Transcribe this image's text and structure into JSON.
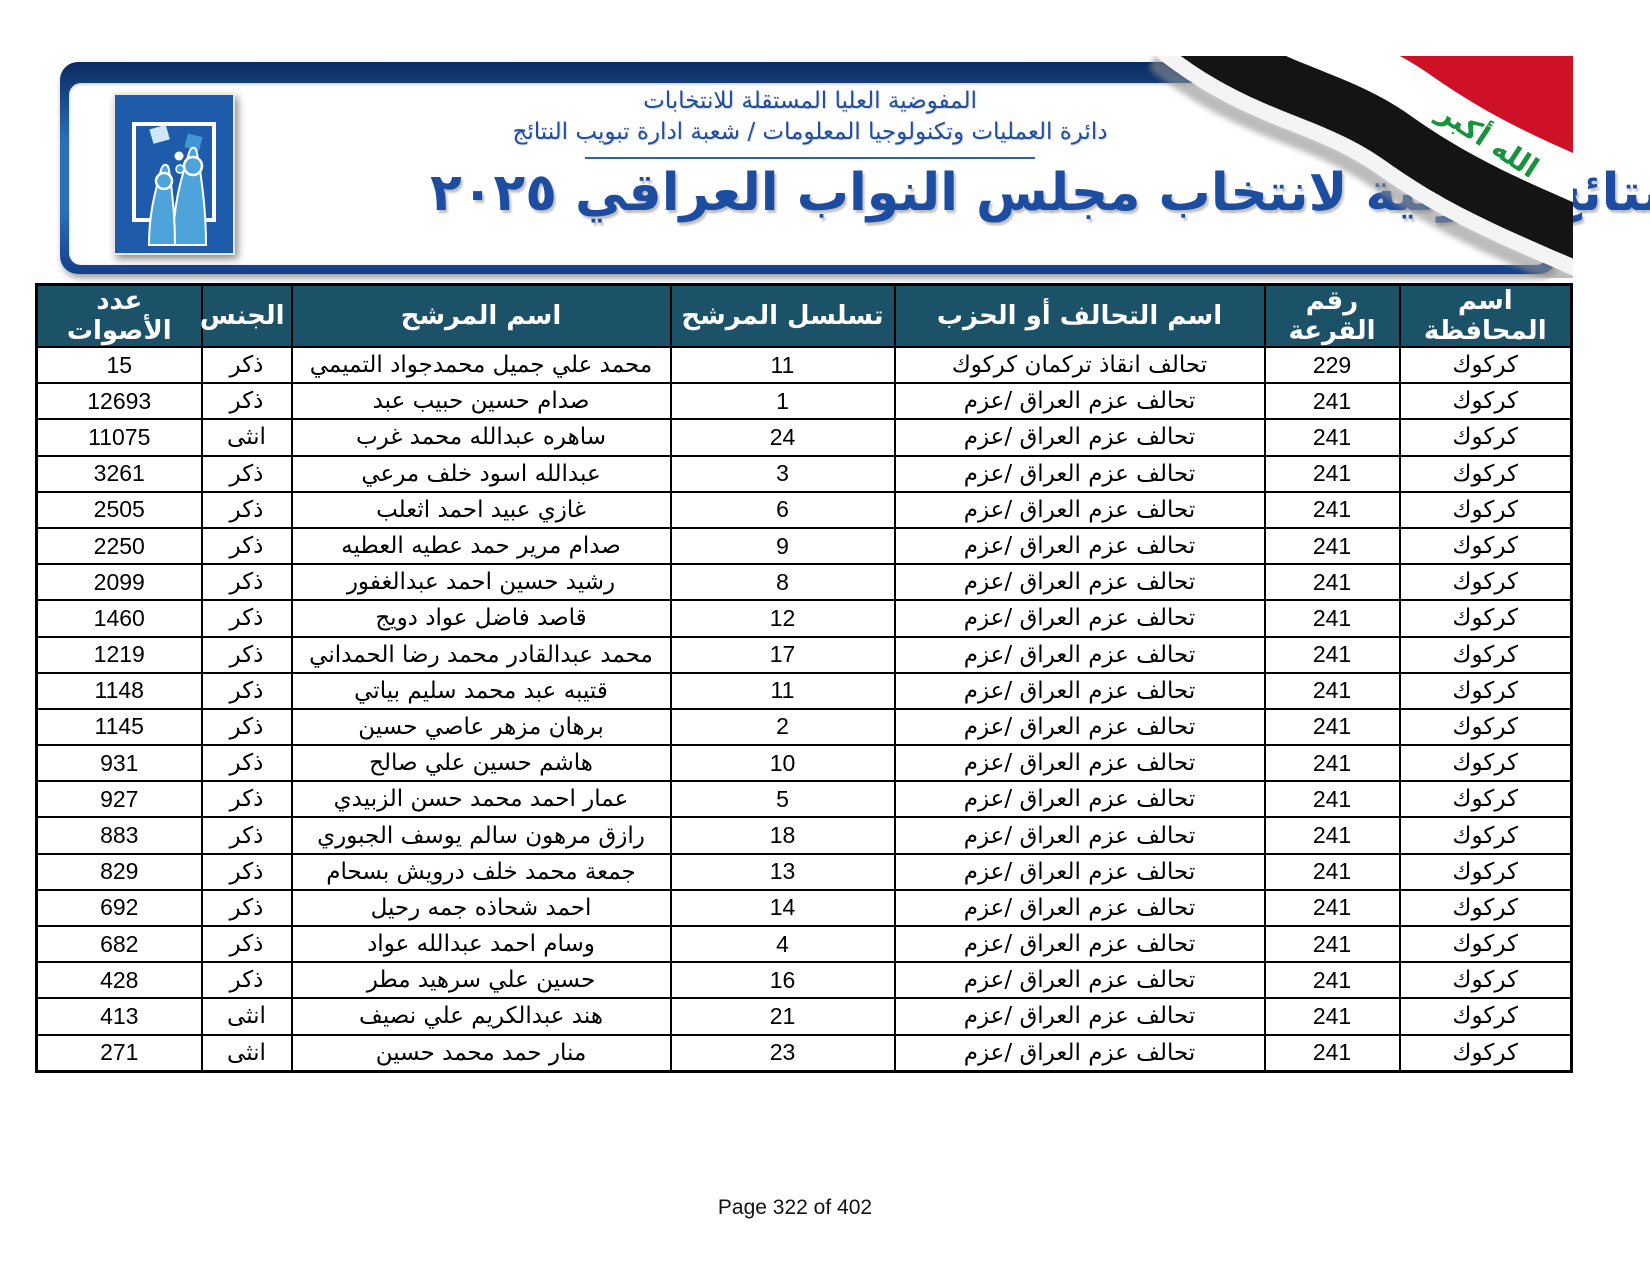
{
  "banner": {
    "org_line1": "المفوضية العليا المستقلة للانتخابات",
    "org_line2": "دائرة العمليات وتكنولوجيا المعلومات / شعبة ادارة تبويب النتائج",
    "title": "النتائج الاولية لانتخاب مجلس النواب العراقي ٢٠٢٥",
    "flag_takbir": "الله أكبر",
    "colors": {
      "frame_blue": "#2e6fb8",
      "title_blue": "#1c4da1",
      "flag_red": "#ce1126",
      "flag_black": "#111111",
      "takbir_green": "#17923d",
      "logo_blue": "#1e5cab",
      "logo_light_blue": "#4da3da"
    }
  },
  "table": {
    "header_color": "#1c5268",
    "headers": [
      "اسم المحافظة",
      "رقم القرعة",
      "اسم التحالف أو الحزب",
      "تسلسل المرشح",
      "اسم المرشح",
      "الجنس",
      "عدد الأصوات"
    ],
    "column_keys": [
      "governorate",
      "lottery",
      "party",
      "sequence",
      "name",
      "gender",
      "votes"
    ],
    "numeric_keys": [
      "lottery",
      "sequence",
      "votes"
    ],
    "rows": [
      {
        "votes": "15",
        "gender": "ذكر",
        "name": "محمد علي جميل محمدجواد التميمي",
        "sequence": "11",
        "party": "تحالف انقاذ تركمان كركوك",
        "lottery": "229",
        "governorate": "كركوك"
      },
      {
        "votes": "12693",
        "gender": "ذكر",
        "name": "صدام حسين حبيب عبد",
        "sequence": "1",
        "party": "تحالف عزم العراق /عزم",
        "lottery": "241",
        "governorate": "كركوك"
      },
      {
        "votes": "11075",
        "gender": "انثى",
        "name": "ساهره عبدالله محمد غرب",
        "sequence": "24",
        "party": "تحالف عزم العراق /عزم",
        "lottery": "241",
        "governorate": "كركوك"
      },
      {
        "votes": "3261",
        "gender": "ذكر",
        "name": "عبدالله اسود خلف مرعي",
        "sequence": "3",
        "party": "تحالف عزم العراق /عزم",
        "lottery": "241",
        "governorate": "كركوك"
      },
      {
        "votes": "2505",
        "gender": "ذكر",
        "name": "غازي عبيد احمد اثعلب",
        "sequence": "6",
        "party": "تحالف عزم العراق /عزم",
        "lottery": "241",
        "governorate": "كركوك"
      },
      {
        "votes": "2250",
        "gender": "ذكر",
        "name": "صدام مرير حمد عطيه العطيه",
        "sequence": "9",
        "party": "تحالف عزم العراق /عزم",
        "lottery": "241",
        "governorate": "كركوك"
      },
      {
        "votes": "2099",
        "gender": "ذكر",
        "name": "رشيد حسين احمد عبدالغفور",
        "sequence": "8",
        "party": "تحالف عزم العراق /عزم",
        "lottery": "241",
        "governorate": "كركوك"
      },
      {
        "votes": "1460",
        "gender": "ذكر",
        "name": "قاصد فاضل عواد دويج",
        "sequence": "12",
        "party": "تحالف عزم العراق /عزم",
        "lottery": "241",
        "governorate": "كركوك"
      },
      {
        "votes": "1219",
        "gender": "ذكر",
        "name": "محمد عبدالقادر محمد رضا الحمداني",
        "sequence": "17",
        "party": "تحالف عزم العراق /عزم",
        "lottery": "241",
        "governorate": "كركوك"
      },
      {
        "votes": "1148",
        "gender": "ذكر",
        "name": "قتيبه عبد محمد سليم بياتي",
        "sequence": "11",
        "party": "تحالف عزم العراق /عزم",
        "lottery": "241",
        "governorate": "كركوك"
      },
      {
        "votes": "1145",
        "gender": "ذكر",
        "name": "برهان مزهر عاصي حسين",
        "sequence": "2",
        "party": "تحالف عزم العراق /عزم",
        "lottery": "241",
        "governorate": "كركوك"
      },
      {
        "votes": "931",
        "gender": "ذكر",
        "name": "هاشم حسين علي صالح",
        "sequence": "10",
        "party": "تحالف عزم العراق /عزم",
        "lottery": "241",
        "governorate": "كركوك"
      },
      {
        "votes": "927",
        "gender": "ذكر",
        "name": "عمار احمد محمد حسن  الزبيدي",
        "sequence": "5",
        "party": "تحالف عزم العراق /عزم",
        "lottery": "241",
        "governorate": "كركوك"
      },
      {
        "votes": "883",
        "gender": "ذكر",
        "name": "رازق مرهون سالم يوسف الجبوري",
        "sequence": "18",
        "party": "تحالف عزم العراق /عزم",
        "lottery": "241",
        "governorate": "كركوك"
      },
      {
        "votes": "829",
        "gender": "ذكر",
        "name": "جمعة محمد خلف درويش بسحام",
        "sequence": "13",
        "party": "تحالف عزم العراق /عزم",
        "lottery": "241",
        "governorate": "كركوك"
      },
      {
        "votes": "692",
        "gender": "ذكر",
        "name": "احمد شحاذه جمه رحيل",
        "sequence": "14",
        "party": "تحالف عزم العراق /عزم",
        "lottery": "241",
        "governorate": "كركوك"
      },
      {
        "votes": "682",
        "gender": "ذكر",
        "name": "وسام احمد عبدالله عواد",
        "sequence": "4",
        "party": "تحالف عزم العراق /عزم",
        "lottery": "241",
        "governorate": "كركوك"
      },
      {
        "votes": "428",
        "gender": "ذكر",
        "name": "حسين علي سرهيد مطر",
        "sequence": "16",
        "party": "تحالف عزم العراق /عزم",
        "lottery": "241",
        "governorate": "كركوك"
      },
      {
        "votes": "413",
        "gender": "انثى",
        "name": "هند عبدالكريم علي نصيف",
        "sequence": "21",
        "party": "تحالف عزم العراق /عزم",
        "lottery": "241",
        "governorate": "كركوك"
      },
      {
        "votes": "271",
        "gender": "انثى",
        "name": "منار حمد محمد حسين",
        "sequence": "23",
        "party": "تحالف عزم العراق /عزم",
        "lottery": "241",
        "governorate": "كركوك"
      }
    ]
  },
  "footer": {
    "page_label": "Page 322 of 402"
  }
}
